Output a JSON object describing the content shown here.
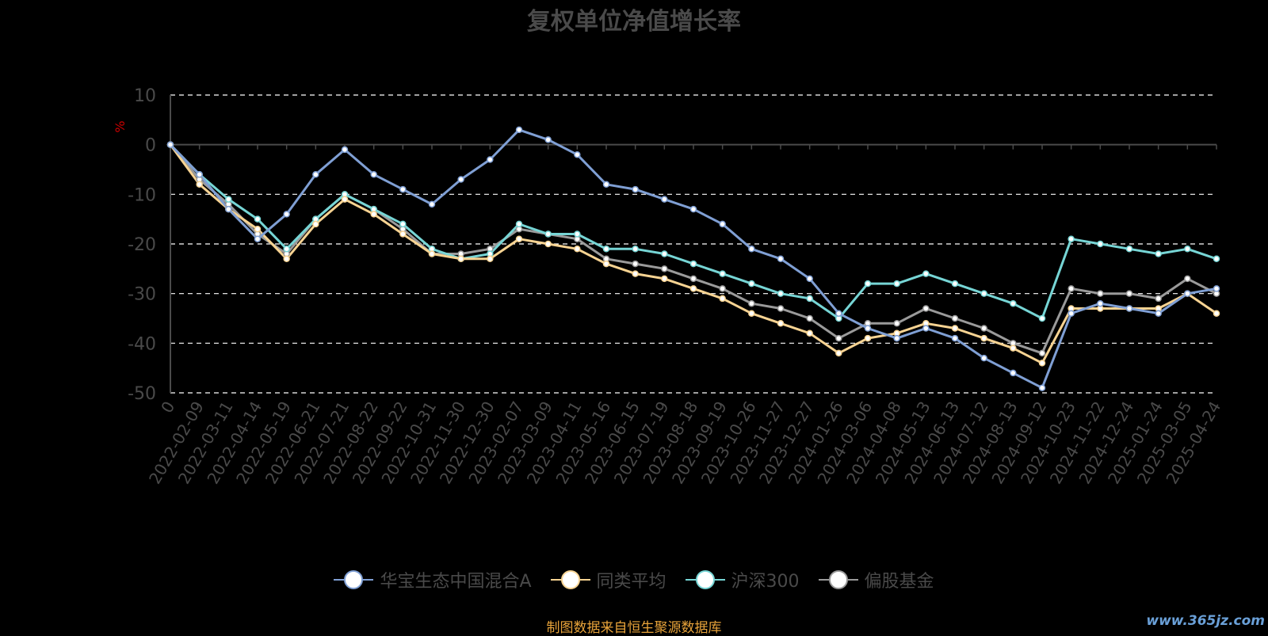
{
  "chart_data": {
    "type": "line",
    "title": "复权单位净值增长率",
    "ylabel": "%",
    "ylim": [
      -50,
      10
    ],
    "yticks": [
      10,
      0,
      -10,
      -20,
      -30,
      -40,
      -50
    ],
    "grid": true,
    "legend_position": "bottom-center",
    "x_categories": [
      "0",
      "2022-02-09",
      "2022-03-11",
      "2022-04-14",
      "2022-05-19",
      "2022-06-21",
      "2022-07-21",
      "2022-08-22",
      "2022-09-22",
      "2022-10-31",
      "2022-11-30",
      "2022-12-30",
      "2023-02-07",
      "2023-03-09",
      "2023-04-11",
      "2023-05-16",
      "2023-06-15",
      "2023-07-19",
      "2023-08-18",
      "2023-09-19",
      "2023-10-26",
      "2023-11-27",
      "2023-12-27",
      "2024-01-26",
      "2024-03-06",
      "2024-04-08",
      "2024-05-13",
      "2024-06-13",
      "2024-07-12",
      "2024-08-13",
      "2024-09-12",
      "2024-10-23",
      "2024-11-22",
      "2024-12-24",
      "2025-01-24",
      "2025-03-05",
      "2025-04-24"
    ],
    "series": [
      {
        "name": "华宝生态中国混合A",
        "color": "#7f9fd4",
        "values": [
          0,
          -6,
          -13,
          -19,
          -14,
          -6,
          -1,
          -6,
          -9,
          -12,
          -7,
          -3,
          3,
          1,
          -2,
          -8,
          -9,
          -11,
          -13,
          -16,
          -21,
          -23,
          -27,
          -34,
          -37,
          -39,
          -37,
          -39,
          -43,
          -46,
          -49,
          -34,
          -32,
          -33,
          -34,
          -30,
          -29
        ]
      },
      {
        "name": "同类平均",
        "color": "#f7d392",
        "values": [
          0,
          -8,
          -13,
          -17,
          -23,
          -16,
          -11,
          -14,
          -18,
          -22,
          -23,
          -23,
          -19,
          -20,
          -21,
          -24,
          -26,
          -27,
          -29,
          -31,
          -34,
          -36,
          -38,
          -42,
          -39,
          -38,
          -36,
          -37,
          -39,
          -41,
          -44,
          -33,
          -33,
          -33,
          -33,
          -30,
          -34
        ]
      },
      {
        "name": "沪深300",
        "color": "#76d5d5",
        "values": [
          0,
          -6,
          -11,
          -15,
          -21,
          -15,
          -10,
          -13,
          -16,
          -21,
          -23,
          -22,
          -16,
          -18,
          -18,
          -21,
          -21,
          -22,
          -24,
          -26,
          -28,
          -30,
          -31,
          -35,
          -28,
          -28,
          -26,
          -28,
          -30,
          -32,
          -35,
          -19,
          -20,
          -21,
          -22,
          -21,
          -23
        ]
      },
      {
        "name": "偏股基金",
        "color": "#9a9a9a",
        "values": [
          0,
          -7,
          -12,
          -18,
          -22,
          -15,
          -10,
          -13,
          -17,
          -22,
          -22,
          -21,
          -17,
          -18,
          -19,
          -23,
          -24,
          -25,
          -27,
          -29,
          -32,
          -33,
          -35,
          -39,
          -36,
          -36,
          -33,
          -35,
          -37,
          -40,
          -42,
          -29,
          -30,
          -30,
          -31,
          -27,
          -30
        ]
      }
    ]
  },
  "legend_items": [
    "华宝生态中国混合A",
    "同类平均",
    "沪深300",
    "偏股基金"
  ],
  "source_note": "制图数据来自恒生聚源数据库",
  "watermark": "www.365jz.com"
}
